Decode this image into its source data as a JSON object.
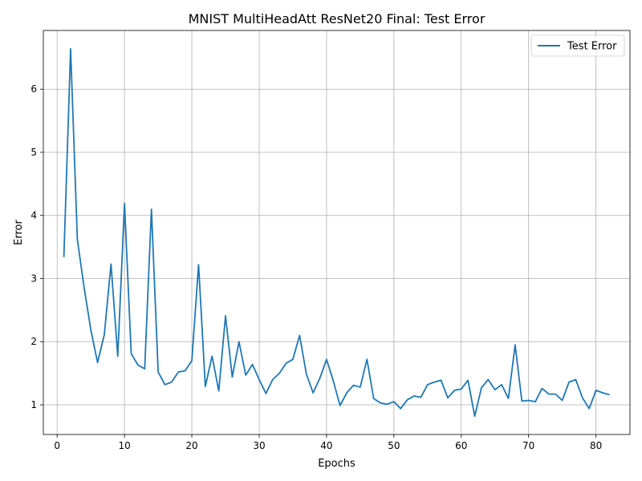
{
  "chart_data": {
    "type": "line",
    "title": "MNIST MultiHeadAtt ResNet20 Final: Test Error",
    "xlabel": "Epochs",
    "ylabel": "Error",
    "xlim": [
      -2.05,
      85.05
    ],
    "ylim": [
      0.53,
      6.93
    ],
    "xticks": [
      0,
      10,
      20,
      30,
      40,
      50,
      60,
      70,
      80
    ],
    "yticks": [
      1,
      2,
      3,
      4,
      5,
      6
    ],
    "grid": true,
    "legend_position": "top-right",
    "series": [
      {
        "name": "Test Error",
        "color": "#1f77b4",
        "x": [
          1,
          2,
          3,
          4,
          5,
          6,
          7,
          8,
          9,
          10,
          11,
          12,
          13,
          14,
          15,
          16,
          17,
          18,
          19,
          20,
          21,
          22,
          23,
          24,
          25,
          26,
          27,
          28,
          29,
          30,
          31,
          32,
          33,
          34,
          35,
          36,
          37,
          38,
          39,
          40,
          41,
          42,
          43,
          44,
          45,
          46,
          47,
          48,
          49,
          50,
          51,
          52,
          53,
          54,
          55,
          56,
          57,
          58,
          59,
          60,
          61,
          62,
          63,
          64,
          65,
          66,
          67,
          68,
          69,
          70,
          71,
          72,
          73,
          74,
          75,
          76,
          77,
          78,
          79,
          80,
          81,
          82
        ],
        "values": [
          3.34,
          6.64,
          3.62,
          2.86,
          2.19,
          1.67,
          2.11,
          3.23,
          1.77,
          4.19,
          1.81,
          1.63,
          1.57,
          4.1,
          1.52,
          1.32,
          1.36,
          1.52,
          1.54,
          1.7,
          3.22,
          1.29,
          1.77,
          1.22,
          2.41,
          1.44,
          2.0,
          1.47,
          1.64,
          1.4,
          1.18,
          1.4,
          1.5,
          1.66,
          1.72,
          2.1,
          1.49,
          1.19,
          1.42,
          1.72,
          1.38,
          0.99,
          1.19,
          1.31,
          1.28,
          1.72,
          1.1,
          1.03,
          1.01,
          1.05,
          0.94,
          1.08,
          1.14,
          1.12,
          1.32,
          1.36,
          1.39,
          1.11,
          1.23,
          1.25,
          1.39,
          0.82,
          1.27,
          1.4,
          1.24,
          1.32,
          1.1,
          1.95,
          1.06,
          1.07,
          1.05,
          1.26,
          1.17,
          1.17,
          1.07,
          1.36,
          1.4,
          1.11,
          0.94,
          1.23,
          1.19,
          1.16
        ]
      }
    ]
  }
}
